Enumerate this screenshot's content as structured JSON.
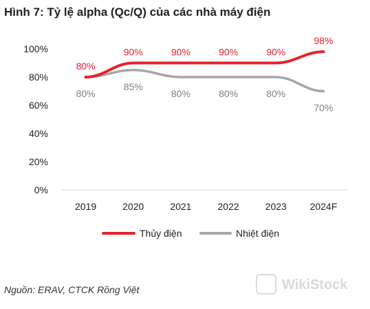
{
  "title": "Hình 7: Tỷ lệ alpha (Qc/Q) của các nhà máy điện",
  "source": "Nguồn: ERAV, CTCK Rồng Việt",
  "watermark": "WikiStock",
  "chart_data": {
    "type": "line",
    "categories": [
      "2019",
      "2020",
      "2021",
      "2022",
      "2023",
      "2024F"
    ],
    "ylim": [
      0,
      100
    ],
    "yticks": [
      0,
      20,
      40,
      60,
      80,
      100
    ],
    "ytick_labels": [
      "0%",
      "20%",
      "40%",
      "60%",
      "80%",
      "100%"
    ],
    "grid": false,
    "legend_position": "bottom",
    "series": [
      {
        "name": "Thủy điện",
        "color": "#e8202a",
        "values": [
          80,
          90,
          90,
          90,
          90,
          98
        ],
        "labels": [
          "80%",
          "90%",
          "90%",
          "90%",
          "90%",
          "98%"
        ]
      },
      {
        "name": "Nhiệt điện",
        "color": "#a6a6a6",
        "values": [
          80,
          85,
          80,
          80,
          80,
          70
        ],
        "labels": [
          "80%",
          "85%",
          "80%",
          "80%",
          "80%",
          "70%"
        ]
      }
    ]
  }
}
